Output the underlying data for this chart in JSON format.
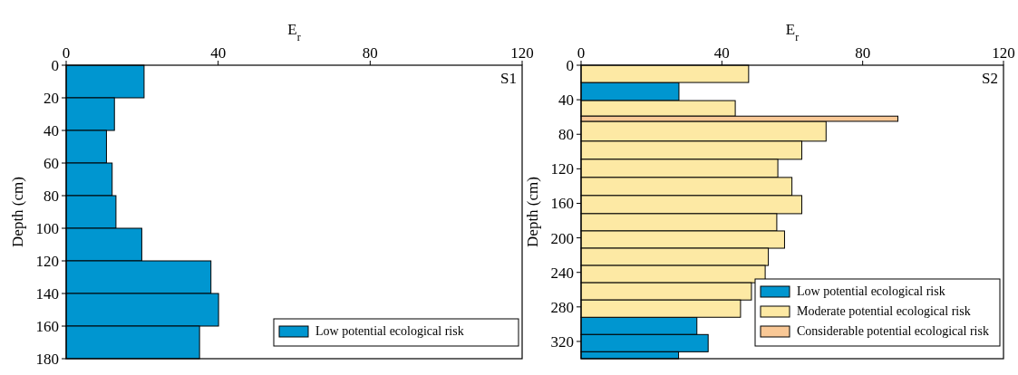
{
  "chart_data": [
    {
      "type": "histogram",
      "orientation": "horizontal",
      "xlabel": "E$_{r}$",
      "ylabel": "Depth (cm)",
      "annotations": [
        "S1"
      ],
      "bins": [
        0,
        20,
        40,
        60,
        80,
        100,
        120,
        140,
        160,
        180
      ],
      "series": [
        {
          "name": "Low potential ecological risk",
          "color": "#0096d0",
          "values": [
            20.5,
            12.7,
            10.6,
            12.1,
            13.1,
            19.9,
            38.1,
            40.1,
            35.1
          ]
        }
      ],
      "xlim": [
        0,
        120
      ],
      "xticks": [
        0,
        40,
        80,
        120
      ],
      "ylim": [
        180,
        0
      ],
      "yticks": [
        0,
        20,
        40,
        60,
        80,
        100,
        120,
        140,
        160,
        180
      ],
      "legend": "bottom right"
    },
    {
      "type": "histogram",
      "orientation": "horizontal",
      "xlabel": "E$_{r}$",
      "ylabel": "Depth (cm)",
      "annotations": [
        "S2"
      ],
      "bins": [
        0,
        20,
        41,
        59,
        65,
        88,
        109,
        130,
        151,
        172,
        192,
        212,
        232,
        252,
        272,
        292,
        312,
        332,
        340
      ],
      "series": [
        {
          "name": "Low potential ecological risk",
          "color": "#0096d0",
          "values": [
            null,
            27.8,
            null,
            null,
            null,
            null,
            null,
            null,
            null,
            null,
            null,
            null,
            null,
            null,
            null,
            32.9,
            36.1,
            27.7
          ]
        },
        {
          "name": "Moderate potential ecological risk",
          "color": "#fde9a4",
          "values": [
            47.6,
            null,
            43.8,
            null,
            69.6,
            62.7,
            55.9,
            59.9,
            62.7,
            55.6,
            57.8,
            53.2,
            52.3,
            48.4,
            45.3,
            null,
            null,
            null
          ]
        },
        {
          "name": "Considerable potential ecological risk",
          "color": "#f9c896",
          "values": [
            null,
            null,
            null,
            90.0,
            null,
            null,
            null,
            null,
            null,
            null,
            null,
            null,
            null,
            null,
            null,
            null,
            null,
            null
          ]
        }
      ],
      "xlim": [
        0,
        120
      ],
      "xticks": [
        0,
        40,
        80,
        120
      ],
      "ylim": [
        340,
        0
      ],
      "yticks": [
        0,
        40,
        80,
        120,
        160,
        200,
        240,
        280,
        320
      ],
      "legend": "bottom right"
    }
  ]
}
